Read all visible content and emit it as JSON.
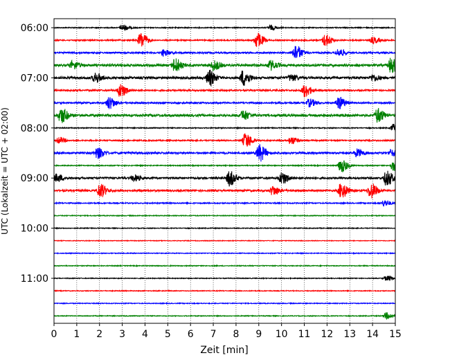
{
  "chart_data": {
    "type": "line",
    "title": "",
    "xlabel": "Zeit  [min]",
    "ylabel": "UTC (Lokalzeit = UTC + 02:00)",
    "xlim": [
      0,
      15
    ],
    "x_ticks": [
      "0",
      "1",
      "2",
      "3",
      "4",
      "5",
      "6",
      "7",
      "8",
      "9",
      "10",
      "11",
      "12",
      "13",
      "14",
      "15"
    ],
    "y_ticks": [
      "06:00",
      "07:00",
      "08:00",
      "09:00",
      "10:00",
      "11:00"
    ],
    "grid": "vertical dotted",
    "colors": [
      "#000000",
      "#ff0000",
      "#0000ff",
      "#008000"
    ],
    "trace_interval_minutes": 15,
    "traces": [
      {
        "start": "06:00",
        "color": "#000000",
        "noise": 0.06,
        "events": [
          [
            3.0,
            0.4
          ],
          [
            9.5,
            0.3
          ]
        ]
      },
      {
        "start": "06:15",
        "color": "#ff0000",
        "noise": 0.08,
        "events": [
          [
            3.8,
            1.0
          ],
          [
            8.9,
            1.0
          ],
          [
            11.9,
            0.8
          ],
          [
            14.0,
            0.4
          ]
        ]
      },
      {
        "start": "06:30",
        "color": "#0000ff",
        "noise": 0.1,
        "events": [
          [
            4.8,
            0.4
          ],
          [
            10.6,
            1.0
          ],
          [
            12.5,
            0.5
          ]
        ]
      },
      {
        "start": "06:45",
        "color": "#008000",
        "noise": 0.15,
        "events": [
          [
            0.8,
            0.5
          ],
          [
            5.3,
            0.9
          ],
          [
            7.0,
            0.6
          ],
          [
            9.5,
            0.6
          ],
          [
            14.8,
            1.0
          ]
        ]
      },
      {
        "start": "07:00",
        "color": "#000000",
        "noise": 0.15,
        "events": [
          [
            1.8,
            0.6
          ],
          [
            6.8,
            1.0
          ],
          [
            8.3,
            1.0
          ],
          [
            10.4,
            0.4
          ],
          [
            14.0,
            0.4
          ]
        ]
      },
      {
        "start": "07:15",
        "color": "#ff0000",
        "noise": 0.1,
        "events": [
          [
            2.9,
            0.9
          ],
          [
            11.0,
            0.8
          ]
        ]
      },
      {
        "start": "07:30",
        "color": "#0000ff",
        "noise": 0.1,
        "events": [
          [
            2.4,
            0.8
          ],
          [
            11.2,
            0.5
          ],
          [
            12.5,
            0.8
          ]
        ]
      },
      {
        "start": "07:45",
        "color": "#008000",
        "noise": 0.15,
        "events": [
          [
            0.3,
            1.0
          ],
          [
            8.3,
            0.6
          ],
          [
            14.2,
            0.9
          ]
        ]
      },
      {
        "start": "08:00",
        "color": "#000000",
        "noise": 0.06,
        "events": [
          [
            14.9,
            0.5
          ]
        ]
      },
      {
        "start": "08:15",
        "color": "#ff0000",
        "noise": 0.08,
        "events": [
          [
            0.2,
            0.4
          ],
          [
            8.4,
            1.0
          ],
          [
            10.4,
            0.5
          ]
        ]
      },
      {
        "start": "08:30",
        "color": "#0000ff",
        "noise": 0.12,
        "events": [
          [
            1.9,
            0.7
          ],
          [
            9.0,
            1.1
          ],
          [
            13.3,
            0.5
          ],
          [
            14.8,
            0.4
          ]
        ]
      },
      {
        "start": "08:45",
        "color": "#008000",
        "noise": 0.06,
        "events": [
          [
            12.6,
            0.9
          ],
          [
            14.9,
            0.7
          ]
        ]
      },
      {
        "start": "09:00",
        "color": "#000000",
        "noise": 0.12,
        "events": [
          [
            0.1,
            0.5
          ],
          [
            3.5,
            0.4
          ],
          [
            7.7,
            1.0
          ],
          [
            10.0,
            0.8
          ],
          [
            14.6,
            1.0
          ]
        ]
      },
      {
        "start": "09:15",
        "color": "#ff0000",
        "noise": 0.12,
        "events": [
          [
            2.0,
            0.9
          ],
          [
            9.6,
            0.6
          ],
          [
            12.6,
            1.0
          ],
          [
            13.9,
            1.0
          ]
        ]
      },
      {
        "start": "09:30",
        "color": "#0000ff",
        "noise": 0.07,
        "events": [
          [
            14.5,
            0.4
          ]
        ]
      },
      {
        "start": "09:45",
        "color": "#008000",
        "noise": 0.05,
        "events": []
      },
      {
        "start": "10:00",
        "color": "#000000",
        "noise": 0.05,
        "events": []
      },
      {
        "start": "10:15",
        "color": "#ff0000",
        "noise": 0.04,
        "events": []
      },
      {
        "start": "10:30",
        "color": "#0000ff",
        "noise": 0.05,
        "events": []
      },
      {
        "start": "10:45",
        "color": "#008000",
        "noise": 0.05,
        "events": []
      },
      {
        "start": "11:00",
        "color": "#000000",
        "noise": 0.05,
        "events": [
          [
            14.6,
            0.3
          ]
        ]
      },
      {
        "start": "11:15",
        "color": "#ff0000",
        "noise": 0.05,
        "events": []
      },
      {
        "start": "11:30",
        "color": "#0000ff",
        "noise": 0.05,
        "events": []
      },
      {
        "start": "11:45",
        "color": "#008000",
        "noise": 0.05,
        "events": [
          [
            14.6,
            0.4
          ]
        ]
      }
    ]
  }
}
